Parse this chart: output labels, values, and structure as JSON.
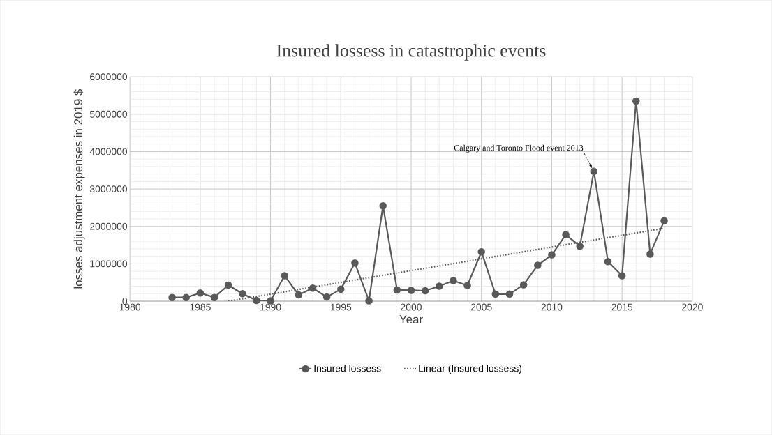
{
  "chart_data": {
    "type": "line",
    "title": "Insured lossess in catastrophic events",
    "xlabel": "Year",
    "ylabel": "losses adjustment expenses  in 2019 $",
    "x": [
      1983,
      1984,
      1985,
      1986,
      1987,
      1988,
      1989,
      1990,
      1991,
      1992,
      1993,
      1994,
      1995,
      1996,
      1997,
      1998,
      1999,
      2000,
      2001,
      2002,
      2003,
      2004,
      2005,
      2006,
      2007,
      2008,
      2009,
      2010,
      2011,
      2012,
      2013,
      2014,
      2015,
      2016,
      2017,
      2018
    ],
    "series": [
      {
        "name": "Insured lossess",
        "color": "#595959",
        "marker": "circle",
        "line_style": "solid",
        "values": [
          100000,
          100000,
          220000,
          100000,
          430000,
          200000,
          20000,
          10000,
          680000,
          170000,
          350000,
          110000,
          320000,
          1020000,
          10000,
          2550000,
          300000,
          290000,
          280000,
          400000,
          550000,
          420000,
          1320000,
          190000,
          190000,
          440000,
          960000,
          1240000,
          1780000,
          1470000,
          3470000,
          1060000,
          680000,
          5350000,
          1260000,
          2150000
        ]
      },
      {
        "name": "Linear (Insured lossess)",
        "color": "#595959",
        "marker": "none",
        "line_style": "dotted",
        "x": [
          1987,
          2018
        ],
        "values": [
          0,
          1950000
        ]
      }
    ],
    "xlim": [
      1980,
      2020
    ],
    "xticks": [
      1980,
      1985,
      1990,
      1995,
      2000,
      2005,
      2010,
      2015,
      2020
    ],
    "ylim": [
      0,
      6000000
    ],
    "yticks": [
      0,
      1000000,
      2000000,
      3000000,
      4000000,
      5000000,
      6000000
    ],
    "grid": true,
    "legend": "bottom",
    "annotations": [
      {
        "text": "Calgary and Toronto Flood event 2013",
        "x": 2013,
        "y": 3470000
      }
    ]
  }
}
